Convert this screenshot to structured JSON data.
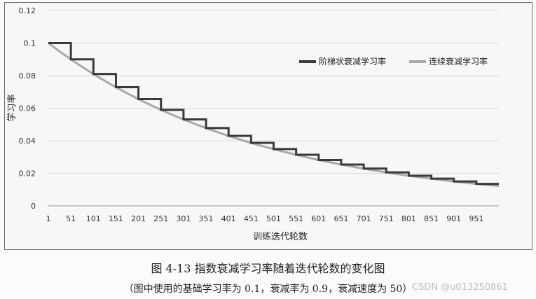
{
  "chart_data": {
    "type": "line",
    "ylabel": "学习率",
    "xlabel": "训练迭代轮数",
    "ylim": [
      0,
      0.12
    ],
    "yticks": [
      0,
      0.02,
      0.04,
      0.06,
      0.08,
      0.1,
      0.12
    ],
    "ytick_labels": [
      "0",
      "0.02",
      "0.04",
      "0.06",
      "0.08",
      "0.1",
      "0.12"
    ],
    "xlim": [
      1,
      1001
    ],
    "xticks": [
      1,
      51,
      101,
      151,
      201,
      251,
      301,
      351,
      401,
      451,
      501,
      551,
      601,
      651,
      701,
      751,
      801,
      851,
      901,
      951
    ],
    "legend_position": "top-right",
    "series": [
      {
        "name": "阶梯状衰减学习率",
        "style": "staircase",
        "color": "#3a3a3a",
        "x": [
          1,
          51,
          101,
          151,
          201,
          251,
          301,
          351,
          401,
          451,
          501,
          551,
          601,
          651,
          701,
          751,
          801,
          851,
          901,
          951,
          1001
        ],
        "values": [
          0.1,
          0.09,
          0.081,
          0.0729,
          0.0656,
          0.059,
          0.0531,
          0.0478,
          0.043,
          0.0387,
          0.0349,
          0.0314,
          0.0282,
          0.0254,
          0.0229,
          0.0206,
          0.0185,
          0.0167,
          0.015,
          0.0135,
          0.0122
        ]
      },
      {
        "name": "连续衰减学习率",
        "style": "smooth",
        "color": "#a9a9a9",
        "x": [
          1,
          51,
          101,
          151,
          201,
          251,
          301,
          351,
          401,
          451,
          501,
          551,
          601,
          651,
          701,
          751,
          801,
          851,
          901,
          951,
          1001
        ],
        "values": [
          0.1,
          0.09,
          0.081,
          0.0729,
          0.0656,
          0.059,
          0.0531,
          0.0478,
          0.043,
          0.0387,
          0.0349,
          0.0314,
          0.0282,
          0.0254,
          0.0229,
          0.0206,
          0.0185,
          0.0167,
          0.015,
          0.0135,
          0.0122
        ]
      }
    ]
  },
  "caption": {
    "main": "图 4-13    指数衰减学习率随着迭代轮数的变化图",
    "sub": "（图中使用的基础学习率为 0.1，衰减率为 0.9，衰减速度为 50）"
  },
  "watermark": "CSDN @u013250861"
}
